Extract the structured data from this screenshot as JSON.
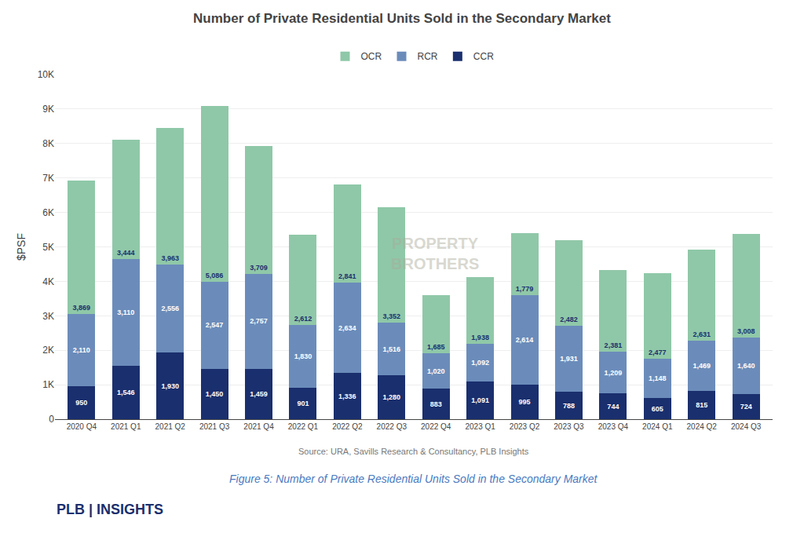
{
  "chart_data": {
    "type": "bar",
    "title": "Number of Private Residential Units Sold in the Secondary Market",
    "ylabel": "$PSF",
    "annotations": [
      "Source: URA, Savills Research & Consultancy, PLB Insights",
      "Figure 5: Number of Private Residential Units Sold in the Secondary Market",
      "PROPERTY\nBROTHERS",
      "PLB | INSIGHTS"
    ],
    "categories": [
      "2020 Q4",
      "2021 Q1",
      "2021 Q2",
      "2021 Q3",
      "2021 Q4",
      "2022 Q1",
      "2022 Q2",
      "2022 Q3",
      "2022 Q4",
      "2023 Q1",
      "2023 Q2",
      "2023 Q3",
      "2023 Q4",
      "2024 Q1",
      "2024 Q2",
      "2024 Q3"
    ],
    "series": [
      {
        "name": "CCR",
        "color": "#1a2f6e",
        "values": [
          950,
          1546,
          1930,
          1450,
          1459,
          901,
          1336,
          1280,
          883,
          1091,
          995,
          788,
          744,
          605,
          815,
          724
        ],
        "value_labels": [
          "950",
          "1,546",
          "1,930",
          "1,450",
          "1,459",
          "901",
          "1,336",
          "1,280",
          "883",
          "1,091",
          "995",
          "788",
          "744",
          "605",
          "815",
          "724"
        ]
      },
      {
        "name": "RCR",
        "color": "#6b8cba",
        "values": [
          2110,
          3110,
          2556,
          2547,
          2757,
          1830,
          2634,
          1516,
          1020,
          1092,
          2614,
          1931,
          1209,
          1148,
          1469,
          1640
        ],
        "value_labels": [
          "2,110",
          "3,110",
          "2,556",
          "2,547",
          "2,757",
          "1,830",
          "2,634",
          "1,516",
          "1,020",
          "1,092",
          "2,614",
          "1,931",
          "1,209",
          "1,148",
          "1,469",
          "1,640"
        ]
      },
      {
        "name": "OCR",
        "color": "#8fc8a8",
        "values": [
          3869,
          3444,
          3963,
          5086,
          3709,
          2612,
          2841,
          3352,
          1685,
          1938,
          1779,
          2482,
          2381,
          2477,
          2631,
          3008
        ],
        "value_labels": [
          "3,869",
          "3,444",
          "3,963",
          "5,086",
          "3,709",
          "2,612",
          "2,841",
          "3,352",
          "1,685",
          "1,938",
          "1,779",
          "2,482",
          "2,381",
          "2,477",
          "2,631",
          "3,008"
        ]
      }
    ],
    "stacked": true,
    "data_labels": true,
    "grid": true,
    "legend": "top",
    "ylim": [
      0,
      10000
    ],
    "yticks": [
      0,
      {
        "value": 1000,
        "label": "1K"
      },
      {
        "value": 2000,
        "label": "2K"
      },
      {
        "value": 3000,
        "label": "3K"
      },
      {
        "value": 4000,
        "label": "4K"
      },
      {
        "value": 5000,
        "label": "5K"
      },
      {
        "value": 6000,
        "label": "6K"
      },
      {
        "value": 7000,
        "label": "7K"
      },
      {
        "value": 8000,
        "label": "8K"
      },
      {
        "value": 9000,
        "label": "9K"
      },
      {
        "value": 10000,
        "label": "10K"
      }
    ]
  }
}
